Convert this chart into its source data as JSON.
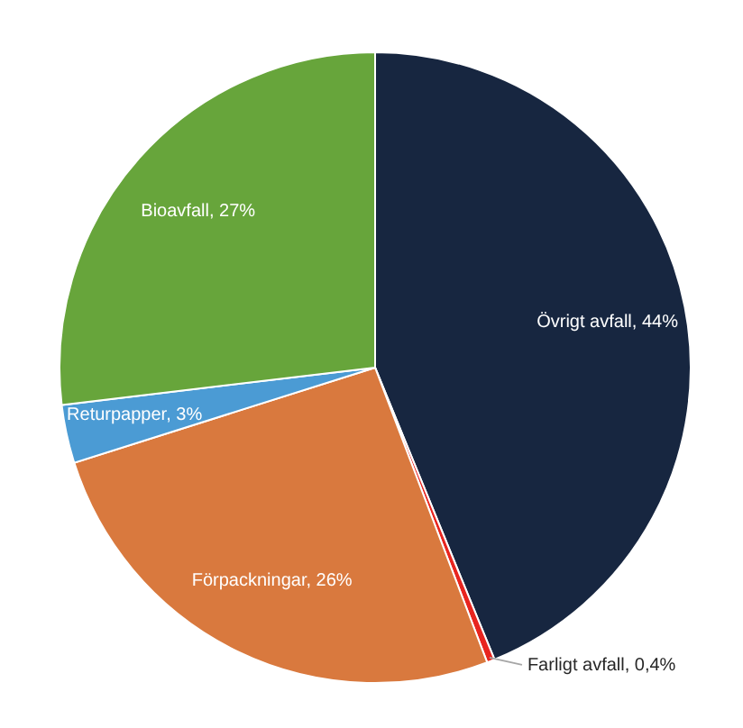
{
  "chart_data": {
    "type": "pie",
    "categories": [
      "Övrigt avfall",
      "Farligt avfall",
      "Förpackningar",
      "Returpapper",
      "Bioavfall"
    ],
    "values": [
      44,
      0.4,
      26,
      3,
      27
    ],
    "colors": [
      "#172640",
      "#e8251f",
      "#d9793e",
      "#4b9bd4",
      "#67a53b"
    ],
    "value_labels": [
      "44%",
      "0,4%",
      "26%",
      "3%",
      "27%"
    ]
  }
}
